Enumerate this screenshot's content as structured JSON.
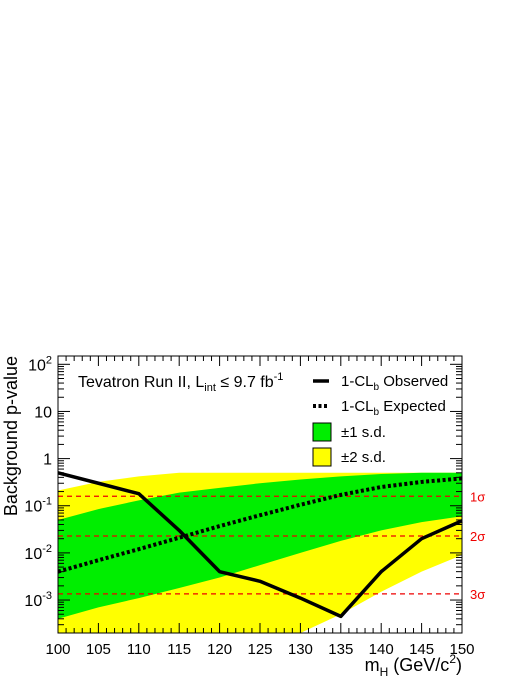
{
  "chart_data": {
    "type": "line",
    "title": "",
    "annotation": {
      "prefix": "Tevatron Run II, L",
      "sub": "int",
      "middle": " ≤ 9.7 fb",
      "sup": "-1"
    },
    "xlabel": {
      "main": "m",
      "sub": "H",
      "units_pre": " (GeV/c",
      "units_sup": "2",
      "units_post": ")"
    },
    "ylabel": "Background p-value",
    "xlim": [
      100,
      150
    ],
    "ylim": [
      0.0002,
      150
    ],
    "yscale": "log",
    "x_ticks": [
      100,
      105,
      110,
      115,
      120,
      125,
      130,
      135,
      140,
      145,
      150
    ],
    "x_tick_labels": [
      "100",
      "105",
      "110",
      "115",
      "120",
      "125",
      "130",
      "135",
      "140",
      "145",
      "150"
    ],
    "y_ticks": [
      {
        "value": 100,
        "base": "10",
        "exp": "2"
      },
      {
        "value": 10,
        "base": "10",
        "exp": ""
      },
      {
        "value": 1,
        "base": "1",
        "exp": ""
      },
      {
        "value": 0.1,
        "base": "10",
        "exp": "-1"
      },
      {
        "value": 0.01,
        "base": "10",
        "exp": "-2"
      },
      {
        "value": 0.001,
        "base": "10",
        "exp": "-3"
      }
    ],
    "x": [
      100,
      105,
      110,
      115,
      120,
      125,
      130,
      135,
      140,
      145,
      150
    ],
    "series": [
      {
        "key": "observed",
        "name_pre": "1-CL",
        "name_sub": "b",
        "name_post": " Observed",
        "style": "solid",
        "values": [
          0.5,
          0.3,
          0.18,
          0.03,
          0.004,
          0.0025,
          0.0011,
          0.00045,
          0.004,
          0.02,
          0.048
        ]
      },
      {
        "key": "expected",
        "name_pre": "1-CL",
        "name_sub": "b",
        "name_post": " Expected",
        "style": "dotted",
        "values": [
          0.004,
          0.007,
          0.012,
          0.021,
          0.037,
          0.063,
          0.105,
          0.17,
          0.25,
          0.32,
          0.38
        ]
      }
    ],
    "bands": [
      {
        "key": "band2",
        "name": "±2 s.d.",
        "color": "#ffff00",
        "upper": [
          0.21,
          0.32,
          0.42,
          0.5,
          0.5,
          0.5,
          0.5,
          0.5,
          0.5,
          0.5,
          0.5
        ],
        "lower": [
          0.0002,
          0.0002,
          0.0002,
          0.0002,
          0.0002,
          0.0002,
          0.0002,
          0.0005,
          0.0015,
          0.004,
          0.009
        ]
      },
      {
        "key": "band1",
        "name": "±1 s.d.",
        "color": "#00ee00",
        "upper": [
          0.05,
          0.085,
          0.13,
          0.19,
          0.24,
          0.3,
          0.36,
          0.42,
          0.47,
          0.5,
          0.5
        ],
        "lower": [
          0.0004,
          0.0007,
          0.0011,
          0.0018,
          0.003,
          0.0055,
          0.01,
          0.018,
          0.03,
          0.045,
          0.06
        ]
      }
    ],
    "sigma_lines": [
      {
        "label": "1σ",
        "value": 0.159
      },
      {
        "label": "2σ",
        "value": 0.0228
      },
      {
        "label": "3σ",
        "value": 0.00135
      }
    ],
    "grid": false,
    "legend_position": "top-right",
    "colors": {
      "sigma": "#ee0000",
      "series": "#000000",
      "axis": "#000000"
    }
  }
}
